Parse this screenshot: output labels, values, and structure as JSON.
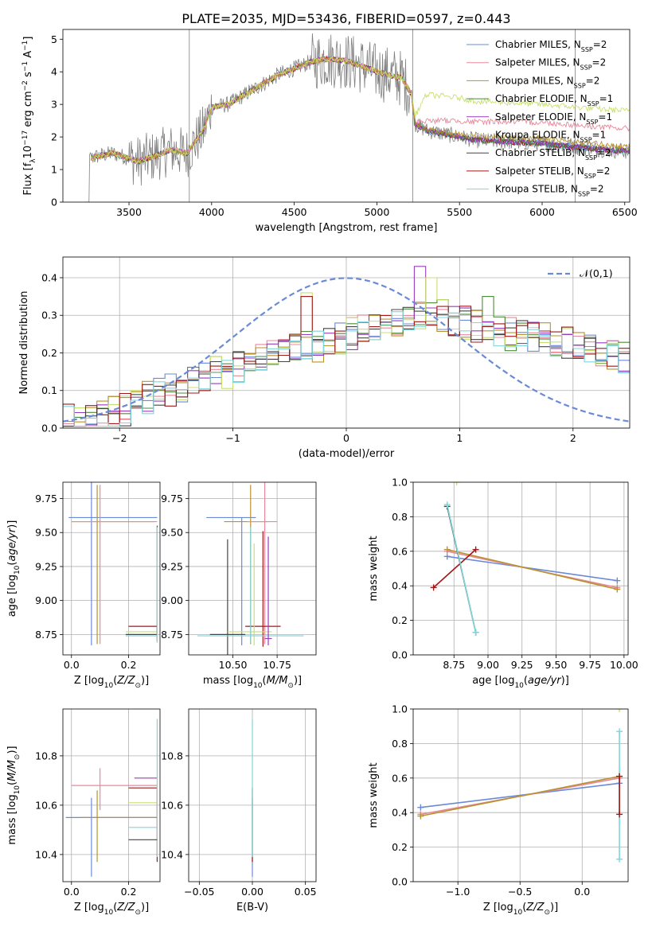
{
  "figure": {
    "title": "PLATE=2035, MJD=53436, FIBERID=0597, z=0.443"
  },
  "models": [
    {
      "name": "Chabrier MILES, N_SSP=2",
      "label_main": "Chabrier MILES, N",
      "label_sub": "SSP",
      "label_end": "=2",
      "color": "#6a8ad8"
    },
    {
      "name": "Salpeter MILES, N_SSP=2",
      "label_main": "Salpeter MILES, N",
      "label_sub": "SSP",
      "label_end": "=2",
      "color": "#e8889a"
    },
    {
      "name": "Kroupa MILES, N_SSP=2",
      "label_main": "Kroupa MILES, N",
      "label_sub": "SSP",
      "label_end": "=2",
      "color": "#b8922e"
    },
    {
      "name": "Chabrier ELODIE, N_SSP=1",
      "label_main": "Chabrier ELODIE, N",
      "label_sub": "SSP",
      "label_end": "=1",
      "color": "#4e8a3c"
    },
    {
      "name": "Salpeter ELODIE, N_SSP=1",
      "label_main": "Salpeter ELODIE, N",
      "label_sub": "SSP",
      "label_end": "=1",
      "color": "#9b3bbf"
    },
    {
      "name": "Kroupa ELODIE, N_SSP=1",
      "label_main": "Kroupa ELODIE, N",
      "label_sub": "SSP",
      "label_end": "=1",
      "color": "#c8e070"
    },
    {
      "name": "Chabrier STELIB, N_SSP=2",
      "label_main": "Chabrier STELIB, N",
      "label_sub": "SSP",
      "label_end": "=2",
      "color": "#444444"
    },
    {
      "name": "Salpeter STELIB, N_SSP=2",
      "label_main": "Salpeter STELIB, N",
      "label_sub": "SSP",
      "label_end": "=2",
      "color": "#a01818"
    },
    {
      "name": "Kroupa STELIB, N_SSP=2",
      "label_main": "Kroupa STELIB, N",
      "label_sub": "SSP",
      "label_end": "=2",
      "color": "#7fd6dc"
    }
  ],
  "chart_data": [
    {
      "id": "spectrum",
      "type": "line",
      "xlabel": "wavelength [Angstrom, rest frame]",
      "ylabel": "Flux [f_λ 10^-17 erg cm^-2 s^-1 A^-1]",
      "ylabel_parts": [
        "Flux [f",
        "λ",
        "10",
        "−17",
        " erg cm",
        "−2",
        " s",
        "−1",
        " A",
        "−1",
        "]"
      ],
      "xlim": [
        3100,
        6530
      ],
      "ylim": [
        0,
        5.3
      ],
      "xticks": [
        3500,
        4000,
        4500,
        5000,
        5500,
        6000,
        6500
      ],
      "yticks": [
        0,
        1,
        2,
        3,
        4,
        5
      ],
      "grid": false,
      "legend": "top-right",
      "data_color": "#808080",
      "model_anchor": {
        "x": [
          3270,
          3300,
          3400,
          3500,
          3550,
          3650,
          3750,
          3850,
          3950,
          4000,
          4100,
          4200,
          4300,
          4400,
          4500,
          4600,
          4700,
          4800,
          4900,
          5000,
          5150,
          5210,
          5230,
          5300,
          5400,
          5500,
          5600,
          5800,
          6000,
          6200,
          6400,
          6530
        ],
        "y": [
          1.35,
          1.4,
          1.5,
          1.35,
          1.25,
          1.4,
          1.6,
          1.5,
          2.2,
          2.9,
          3.0,
          3.3,
          3.6,
          3.9,
          4.1,
          4.3,
          4.4,
          4.35,
          4.2,
          4.0,
          3.8,
          3.3,
          2.4,
          2.2,
          2.1,
          2.0,
          1.9,
          1.85,
          1.8,
          1.7,
          1.6,
          1.55
        ]
      },
      "model_offsets": [
        {
          "x": [
            5210,
            5400,
            5600,
            6000,
            6530
          ],
          "y": [
            0,
            0.05,
            0.1,
            0.15,
            0.15
          ]
        },
        {
          "x": [
            5210,
            5300,
            5500,
            5700,
            6000,
            6530
          ],
          "y": [
            0,
            0.3,
            0.5,
            0.6,
            0.65,
            0.7
          ]
        },
        {
          "x": [
            5210,
            5300,
            5500,
            6000,
            6530
          ],
          "y": [
            0,
            1.1,
            1.2,
            1.2,
            1.25
          ]
        }
      ]
    },
    {
      "id": "residuals",
      "type": "histogram",
      "xlabel": "(data-model)/error",
      "ylabel": "Normed distribution",
      "xlim": [
        -2.5,
        2.5
      ],
      "ylim": [
        0,
        0.455
      ],
      "xticks": [
        -2,
        -1,
        0,
        1,
        2
      ],
      "yticks": [
        0.0,
        0.1,
        0.2,
        0.3,
        0.4
      ],
      "grid": true,
      "legend": "top-right",
      "legend_label": "𝒩(0,1)",
      "gaussian_color": "#6a8ad8",
      "bin_width": 0.1,
      "bins_start": -2.5,
      "base": [
        0.02,
        0.02,
        0.03,
        0.03,
        0.04,
        0.05,
        0.07,
        0.08,
        0.09,
        0.1,
        0.1,
        0.12,
        0.13,
        0.15,
        0.15,
        0.16,
        0.17,
        0.18,
        0.19,
        0.2,
        0.21,
        0.22,
        0.22,
        0.23,
        0.24,
        0.25,
        0.26,
        0.27,
        0.28,
        0.29,
        0.3,
        0.3,
        0.31,
        0.3,
        0.29,
        0.28,
        0.27,
        0.26,
        0.26,
        0.25,
        0.25,
        0.24,
        0.24,
        0.23,
        0.23,
        0.22,
        0.22,
        0.21,
        0.2,
        0.19
      ],
      "spikes": [
        {
          "series": 4,
          "bin": 31,
          "value": 0.43
        },
        {
          "series": 5,
          "bin": 32,
          "value": 0.4
        },
        {
          "series": 7,
          "bin": 21,
          "value": 0.35
        },
        {
          "series": 5,
          "bin": 21,
          "value": 0.36
        },
        {
          "series": 3,
          "bin": 37,
          "value": 0.35
        }
      ]
    },
    {
      "id": "Z-age",
      "type": "errorbar",
      "xlabel": "Z [log10(Z/Z⊙)]",
      "ylabel": "age  [log10(age/yr)]",
      "xlim": [
        -0.03,
        0.31
      ],
      "ylim": [
        8.6,
        9.87
      ],
      "xticks": [
        0.0,
        0.2
      ],
      "yticks": [
        8.75,
        9.0,
        9.25,
        9.5,
        9.75
      ],
      "grid": true,
      "points": [
        {
          "series": 0,
          "x": 0.07,
          "y": 9.61,
          "xerr": [
            0.08,
            0.23
          ],
          "yerr": [
            0.94,
            0.27
          ]
        },
        {
          "series": 2,
          "x": 0.09,
          "y": 9.58,
          "xerr": [
            0.09,
            0.2
          ],
          "yerr": [
            0.9,
            0.27
          ]
        },
        {
          "series": 1,
          "x": 0.1,
          "y": 9.58,
          "xerr": [
            0.1,
            0.2
          ],
          "yerr": [
            0.9,
            0.27
          ]
        },
        {
          "series": 7,
          "x": 0.3,
          "y": 8.81,
          "xerr": [
            0.1,
            0.0
          ],
          "yerr": [
            0.05,
            0.0
          ]
        },
        {
          "series": 5,
          "x": 0.3,
          "y": 8.77,
          "xerr": [
            0.11,
            0.0
          ],
          "yerr": [
            0.05,
            0.0
          ]
        },
        {
          "series": 6,
          "x": 0.3,
          "y": 8.75,
          "xerr": [
            0.11,
            0.0
          ],
          "yerr": [
            0.05,
            0.8
          ]
        },
        {
          "series": 8,
          "x": 0.3,
          "y": 8.74,
          "xerr": [
            0.11,
            0.0
          ],
          "yerr": [
            0.05,
            0.8
          ]
        }
      ]
    },
    {
      "id": "mass-age",
      "type": "errorbar",
      "xlabel": "mass [log10(M/M⊙)]",
      "ylabel": "",
      "xlim": [
        10.25,
        10.97
      ],
      "ylim": [
        8.6,
        9.87
      ],
      "xticks": [
        10.5,
        10.75
      ],
      "yticks": [
        8.75,
        9.0,
        9.25,
        9.5,
        9.75
      ],
      "grid": true,
      "points": [
        {
          "series": 0,
          "x": 10.55,
          "y": 9.61,
          "xerr": [
            0.2,
            0.08
          ],
          "yerr": [
            0.94,
            0.0
          ]
        },
        {
          "series": 2,
          "x": 10.6,
          "y": 9.58,
          "xerr": [
            0.15,
            0.1
          ],
          "yerr": [
            0.9,
            0.27
          ]
        },
        {
          "series": 1,
          "x": 10.68,
          "y": 9.58,
          "xerr": [
            0.1,
            0.07
          ],
          "yerr": [
            0.9,
            0.3
          ]
        },
        {
          "series": 6,
          "x": 10.47,
          "y": 8.75,
          "xerr": [
            0.1,
            0.1
          ],
          "yerr": [
            0.15,
            0.7
          ]
        },
        {
          "series": 7,
          "x": 10.67,
          "y": 8.81,
          "xerr": [
            0.1,
            0.1
          ],
          "yerr": [
            0.15,
            0.7
          ]
        },
        {
          "series": 5,
          "x": 10.62,
          "y": 8.77,
          "xerr": [
            0.15,
            0.1
          ],
          "yerr": [
            0.1,
            0.65
          ]
        },
        {
          "series": 8,
          "x": 10.6,
          "y": 8.74,
          "xerr": [
            0.3,
            0.3
          ],
          "yerr": [
            0.05,
            0.8
          ]
        },
        {
          "series": 4,
          "x": 10.7,
          "y": 8.72,
          "xerr": [
            0.02,
            0.02
          ],
          "yerr": [
            0.05,
            0.75
          ]
        }
      ]
    },
    {
      "id": "age-weight",
      "type": "line",
      "xlabel": "age  [log10(age/yr)]",
      "ylabel": "mass weight",
      "xlim": [
        8.45,
        10.03
      ],
      "ylim": [
        0.0,
        1.0
      ],
      "xticks": [
        8.75,
        9.0,
        9.25,
        9.5,
        9.75,
        10.0
      ],
      "yticks": [
        0.0,
        0.2,
        0.4,
        0.6,
        0.8,
        1.0
      ],
      "grid": true,
      "lines": [
        {
          "series": 0,
          "x": [
            8.7,
            9.95
          ],
          "y": [
            0.57,
            0.43
          ]
        },
        {
          "series": 1,
          "x": [
            8.7,
            9.95
          ],
          "y": [
            0.6,
            0.39
          ]
        },
        {
          "series": 2,
          "x": [
            8.7,
            9.95
          ],
          "y": [
            0.61,
            0.38
          ]
        },
        {
          "series": 7,
          "x": [
            8.6,
            8.91
          ],
          "y": [
            0.39,
            0.61
          ]
        },
        {
          "series": 6,
          "x": [
            8.7,
            8.91
          ],
          "y": [
            0.86,
            0.13
          ]
        },
        {
          "series": 8,
          "x": [
            8.7,
            8.91
          ],
          "y": [
            0.87,
            0.13
          ]
        },
        {
          "series": 5,
          "x": [
            8.77
          ],
          "y": [
            1.0
          ]
        }
      ]
    },
    {
      "id": "Z-mass",
      "type": "errorbar",
      "xlabel": "Z [log10(Z/Z⊙)]",
      "ylabel": "mass [log10(M/M⊙)]",
      "xlim": [
        -0.03,
        0.31
      ],
      "ylim": [
        10.29,
        10.99
      ],
      "xticks": [
        0.0,
        0.2
      ],
      "yticks": [
        10.4,
        10.6,
        10.8
      ],
      "grid": true,
      "points": [
        {
          "series": 0,
          "x": 0.07,
          "y": 10.55,
          "xerr": [
            0.09,
            0.23
          ],
          "yerr": [
            0.24,
            0.08
          ]
        },
        {
          "series": 2,
          "x": 0.09,
          "y": 10.55,
          "xerr": [
            0.06,
            0.21
          ],
          "yerr": [
            0.18,
            0.11
          ]
        },
        {
          "series": 1,
          "x": 0.1,
          "y": 10.68,
          "xerr": [
            0.1,
            0.2
          ],
          "yerr": [
            0.1,
            0.07
          ]
        },
        {
          "series": 4,
          "x": 0.3,
          "y": 10.71,
          "xerr": [
            0.08,
            0.0
          ],
          "yerr": [
            0.0,
            0.0
          ]
        },
        {
          "series": 7,
          "x": 0.3,
          "y": 10.67,
          "xerr": [
            0.1,
            0.0
          ],
          "yerr": [
            0.3,
            0.0
          ]
        },
        {
          "series": 5,
          "x": 0.3,
          "y": 10.61,
          "xerr": [
            0.1,
            0.0
          ],
          "yerr": [
            0.0,
            0.0
          ]
        },
        {
          "series": 8,
          "x": 0.3,
          "y": 10.51,
          "xerr": [
            0.1,
            0.0
          ],
          "yerr": [
            0.12,
            0.44
          ]
        },
        {
          "series": 6,
          "x": 0.3,
          "y": 10.46,
          "xerr": [
            0.1,
            0.0
          ],
          "yerr": [
            0.0,
            0.0
          ]
        }
      ]
    },
    {
      "id": "ebv-mass",
      "type": "errorbar",
      "xlabel": "E(B-V)",
      "ylabel": "",
      "xlim": [
        -0.06,
        0.06
      ],
      "ylim": [
        10.29,
        10.99
      ],
      "xticks": [
        -0.05,
        0.0,
        0.05
      ],
      "yticks": [
        10.4,
        10.6,
        10.8
      ],
      "grid": true,
      "points": [
        {
          "series": 0,
          "x": 0.0,
          "y": 10.55,
          "xerr": [
            0.0,
            0.0
          ],
          "yerr": [
            0.24,
            0.08
          ]
        },
        {
          "series": 7,
          "x": 0.0,
          "y": 10.67,
          "xerr": [
            0.0,
            0.0
          ],
          "yerr": [
            0.3,
            0.0
          ]
        },
        {
          "series": 8,
          "x": 0.0,
          "y": 10.51,
          "xerr": [
            0.0,
            0.0
          ],
          "yerr": [
            0.12,
            0.44
          ]
        }
      ]
    },
    {
      "id": "Z-weight",
      "type": "line",
      "xlabel": "Z [log10(Z/Z⊙)]",
      "ylabel": "mass weight",
      "xlim": [
        -1.36,
        0.37
      ],
      "ylim": [
        0.0,
        1.0
      ],
      "xticks": [
        -1.0,
        -0.5,
        0.0
      ],
      "yticks": [
        0.0,
        0.2,
        0.4,
        0.6,
        0.8,
        1.0
      ],
      "grid": true,
      "lines": [
        {
          "series": 0,
          "x": [
            -1.3,
            0.3
          ],
          "y": [
            0.43,
            0.57
          ]
        },
        {
          "series": 1,
          "x": [
            -1.3,
            0.3
          ],
          "y": [
            0.39,
            0.6
          ]
        },
        {
          "series": 2,
          "x": [
            -1.3,
            0.3
          ],
          "y": [
            0.38,
            0.61
          ]
        },
        {
          "series": 8,
          "x": [
            0.3,
            0.3
          ],
          "y": [
            0.13,
            0.87
          ]
        },
        {
          "series": 7,
          "x": [
            0.3,
            0.3
          ],
          "y": [
            0.39,
            0.61
          ]
        },
        {
          "series": 5,
          "x": [
            0.3
          ],
          "y": [
            1.0
          ]
        }
      ]
    }
  ]
}
